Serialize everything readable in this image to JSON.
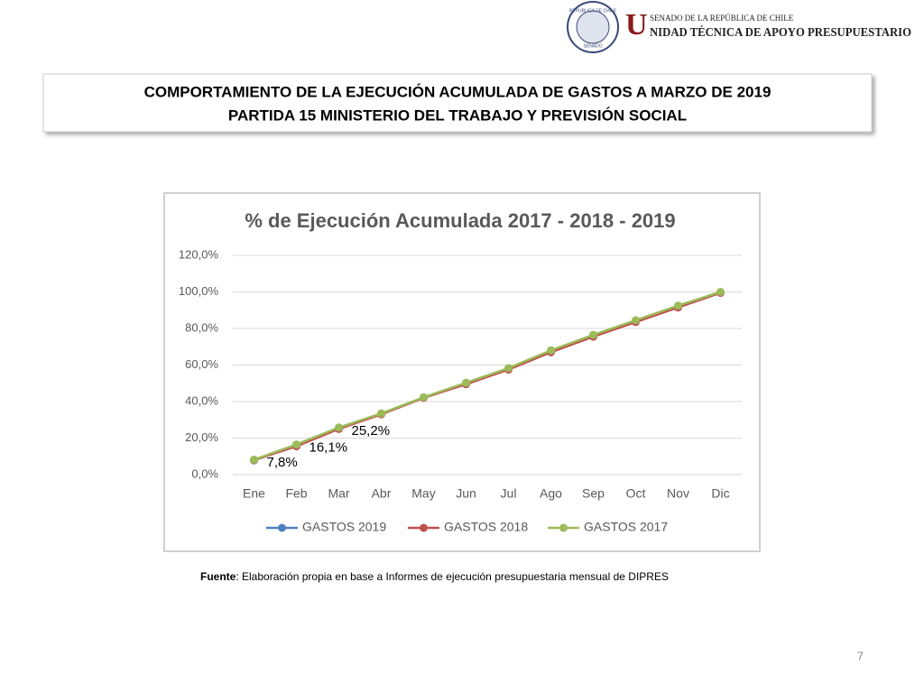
{
  "header": {
    "seal_top": "REPÚBLICA DE CHILE",
    "seal_bottom": "SENADO",
    "line1": "SENADO DE LA REPÚBLICA DE CHILE",
    "initial": "U",
    "line2": "NIDAD TÉCNICA DE APOYO PRESUPUESTARIO"
  },
  "slide_title": [
    "COMPORTAMIENTO DE LA EJECUCIÓN ACUMULADA DE GASTOS A MARZO DE 2019",
    "PARTIDA 15 MINISTERIO DEL TRABAJO Y PREVISIÓN SOCIAL"
  ],
  "chart_data": {
    "type": "line",
    "title": "% de Ejecución Acumulada 2017 - 2018 - 2019",
    "categories": [
      "Ene",
      "Feb",
      "Mar",
      "Abr",
      "May",
      "Jun",
      "Jul",
      "Ago",
      "Sep",
      "Oct",
      "Nov",
      "Dic"
    ],
    "series": [
      {
        "name": "GASTOS 2019",
        "color": "#4f81bd",
        "values": [
          7.8,
          16.1,
          25.2,
          null,
          null,
          null,
          null,
          null,
          null,
          null,
          null,
          null
        ],
        "value_labels": [
          "7,8%",
          "16,1%",
          "25,2%",
          null,
          null,
          null,
          null,
          null,
          null,
          null,
          null,
          null
        ]
      },
      {
        "name": "GASTOS 2018",
        "color": "#c0504d",
        "values": [
          8,
          15.5,
          25,
          33,
          42,
          49.5,
          57.5,
          67,
          75.5,
          83.5,
          91.5,
          99.5
        ]
      },
      {
        "name": "GASTOS 2017",
        "color": "#9bbb59",
        "values": [
          8.2,
          16.5,
          25.8,
          33.5,
          42.3,
          50.3,
          58.3,
          68,
          76.5,
          84.5,
          92.5,
          100
        ]
      }
    ],
    "ylim": [
      0,
      120
    ],
    "yticks": [
      {
        "value": 0,
        "label": "0,0%"
      },
      {
        "value": 20,
        "label": "20,0%"
      },
      {
        "value": 40,
        "label": "40,0%"
      },
      {
        "value": 60,
        "label": "60,0%"
      },
      {
        "value": 80,
        "label": "80,0%"
      },
      {
        "value": 100,
        "label": "100,0%"
      },
      {
        "value": 120,
        "label": "120,0%"
      }
    ],
    "grid": true,
    "legend": "bottom"
  },
  "source": {
    "label": "Fuente",
    "text": ": Elaboración propia en base  a Informes de ejecución presupuestaria mensual de DIPRES"
  },
  "page_number": "7"
}
